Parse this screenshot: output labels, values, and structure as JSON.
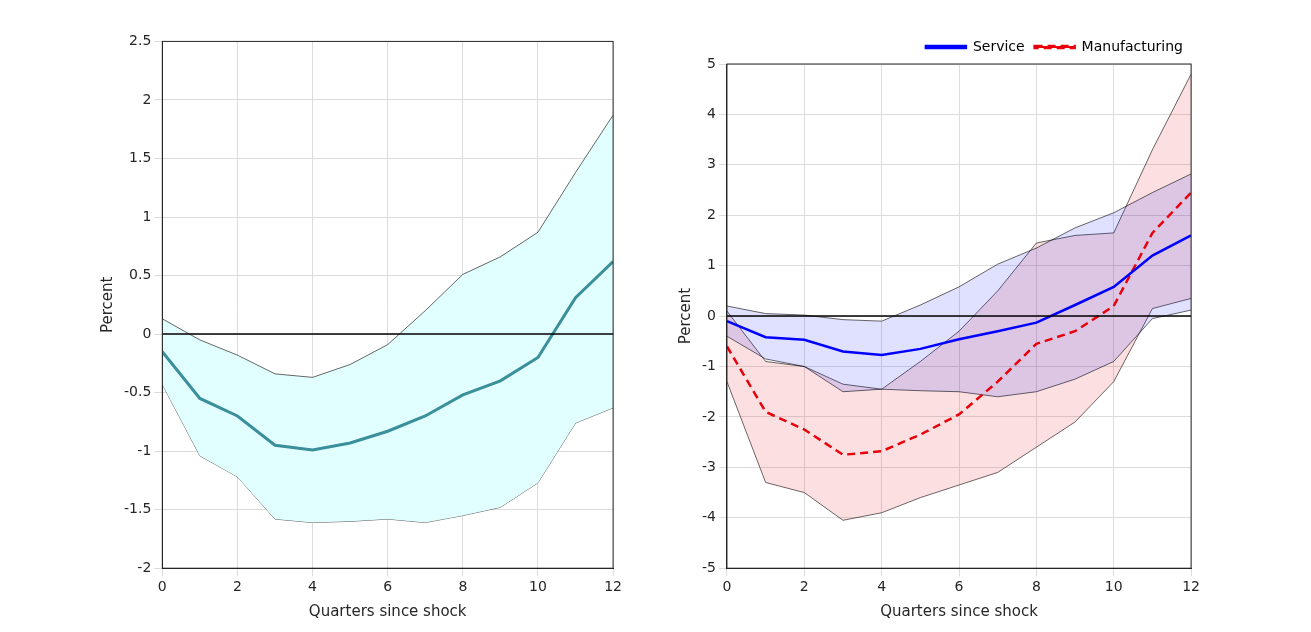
{
  "chart_data": [
    {
      "type": "line",
      "x": [
        0,
        1,
        2,
        3,
        4,
        5,
        6,
        7,
        8,
        9,
        10,
        11,
        12
      ],
      "x_label": "Quarters since shock",
      "y_label": "Percent",
      "xlim": [
        0,
        12
      ],
      "xticks": [
        0,
        2,
        4,
        6,
        8,
        10,
        12
      ],
      "ylim": [
        -2,
        2.5
      ],
      "yticks": [
        -2,
        -1.5,
        -1,
        -0.5,
        0,
        0.5,
        1,
        1.5,
        2,
        2.5
      ],
      "grid": true,
      "series": [
        {
          "color": "#3a8f9a",
          "line_style": "solid",
          "values": [
            -0.15,
            -0.55,
            -0.7,
            -0.95,
            -0.99,
            -0.93,
            -0.83,
            -0.7,
            -0.52,
            -0.4,
            -0.2,
            0.31,
            0.62
          ],
          "upper": [
            0.13,
            -0.05,
            -0.18,
            -0.34,
            -0.37,
            -0.26,
            -0.09,
            0.2,
            0.51,
            0.66,
            0.87,
            1.38,
            1.87
          ],
          "lower": [
            -0.43,
            -1.04,
            -1.22,
            -1.58,
            -1.61,
            -1.6,
            -1.58,
            -1.61,
            -1.55,
            -1.48,
            -1.27,
            -0.76,
            -0.63
          ]
        }
      ]
    },
    {
      "type": "line",
      "x": [
        0,
        1,
        2,
        3,
        4,
        5,
        6,
        7,
        8,
        9,
        10,
        11,
        12
      ],
      "x_label": "Quarters since shock",
      "y_label": "Percent",
      "xlim": [
        0,
        12
      ],
      "xticks": [
        0,
        2,
        4,
        6,
        8,
        10,
        12
      ],
      "ylim": [
        -5,
        5
      ],
      "yticks": [
        -5,
        -4,
        -3,
        -2,
        -1,
        0,
        1,
        2,
        3,
        4,
        5
      ],
      "grid": true,
      "legend": "top-right",
      "series": [
        {
          "name": "Service",
          "color": "#0000ff",
          "line_style": "solid",
          "values": [
            -0.1,
            -0.42,
            -0.47,
            -0.7,
            -0.77,
            -0.65,
            -0.46,
            -0.3,
            -0.13,
            0.22,
            0.58,
            1.2,
            1.6
          ],
          "upper": [
            0.2,
            0.05,
            0.02,
            -0.07,
            -0.1,
            0.22,
            0.58,
            1.03,
            1.35,
            1.75,
            2.05,
            2.45,
            2.82
          ],
          "lower": [
            -0.4,
            -0.85,
            -1.0,
            -1.5,
            -1.45,
            -1.48,
            -1.5,
            -1.6,
            -1.5,
            -1.25,
            -0.9,
            -0.05,
            0.12
          ]
        },
        {
          "name": "Manufacturing",
          "color": "#e8000b",
          "line_style": "dashed",
          "values": [
            -0.6,
            -1.9,
            -2.25,
            -2.75,
            -2.68,
            -2.35,
            -1.95,
            -1.3,
            -0.55,
            -0.3,
            0.2,
            1.65,
            2.45
          ],
          "upper": [
            0.1,
            -0.9,
            -1.0,
            -1.35,
            -1.45,
            -0.9,
            -0.3,
            0.5,
            1.45,
            1.6,
            1.65,
            3.3,
            4.8
          ],
          "lower": [
            -1.3,
            -3.3,
            -3.5,
            -4.05,
            -3.9,
            -3.6,
            -3.35,
            -3.1,
            -2.6,
            -2.1,
            -1.3,
            0.15,
            0.35
          ]
        }
      ]
    }
  ]
}
